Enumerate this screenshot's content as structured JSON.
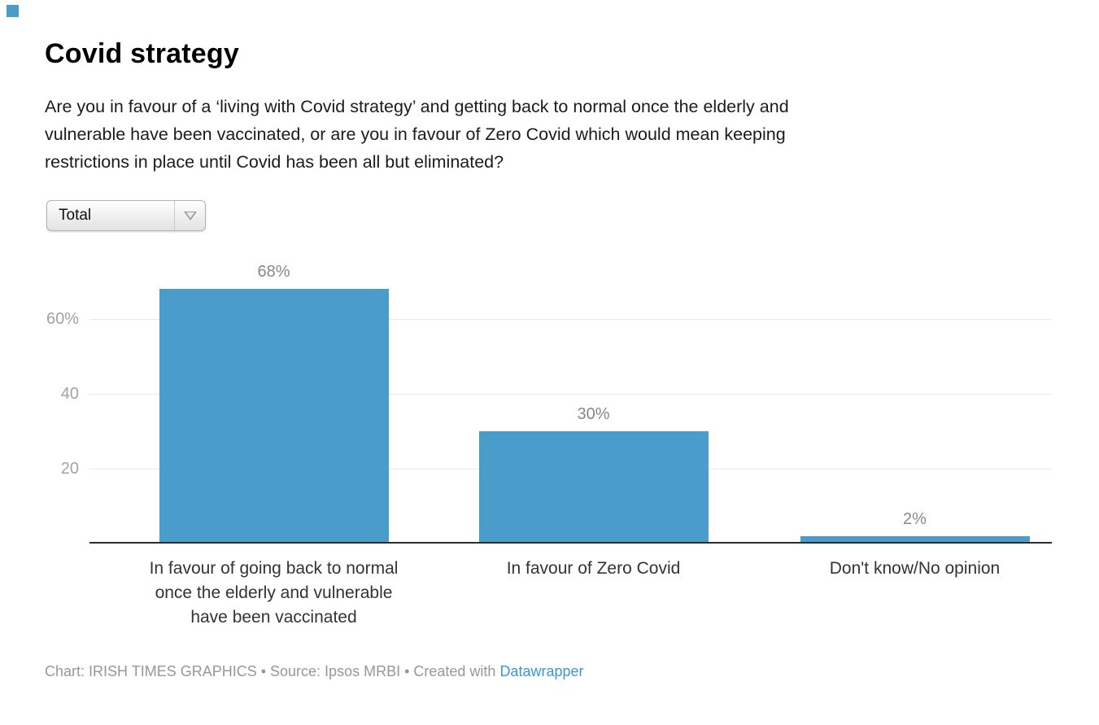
{
  "accent": {
    "bar_color": "#4a9ccb",
    "link_color": "#3a97d4",
    "corner_square_color": "#4a9ccb"
  },
  "header": {
    "title": "Covid strategy",
    "description": "Are you in favour of a ‘living with Covid strategy’ and getting back to normal once the elderly and vulnerable have been vaccinated, or are you in favour of Zero Covid which would mean keeping restrictions in place until Covid has been all but eliminated?",
    "description_lines": [
      "Are you in favour of a ‘living with Covid strategy’ and getting back to normal once the elderly and",
      "vulnerable have been vaccinated, or are you in favour of Zero Covid which would mean keeping",
      "restrictions in place until Covid has been all but eliminated?"
    ]
  },
  "controls": {
    "category_filter": {
      "value": "Total",
      "icon": "chevron-down-icon"
    }
  },
  "chart_data": {
    "type": "bar",
    "title": "Covid strategy",
    "unit": "%",
    "categories": [
      "In favour of going back to normal once the elderly and vulnerable have been vaccinated",
      "In favour of Zero Covid",
      "Don't know/No opinion"
    ],
    "category_label_lines": [
      [
        "In favour of going back to normal",
        "once the elderly and vulnerable",
        "have been vaccinated"
      ],
      [
        "In favour of Zero Covid"
      ],
      [
        "Don't know/No opinion"
      ]
    ],
    "values": [
      68,
      30,
      2
    ],
    "value_labels": [
      "68%",
      "30%",
      "2%"
    ],
    "y_axis": {
      "ticks": [
        {
          "value": 20,
          "label": "20"
        },
        {
          "value": 40,
          "label": "40"
        },
        {
          "value": 60,
          "label": "60%"
        }
      ],
      "range": [
        0,
        72
      ],
      "grid": true
    },
    "bar_color": "#4a9ccb",
    "legend": "none"
  },
  "footer": {
    "credit_text": "Chart: IRISH TIMES GRAPHICS • Source: Ipsos MRBI • Created with ",
    "link_label": "Datawrapper"
  }
}
